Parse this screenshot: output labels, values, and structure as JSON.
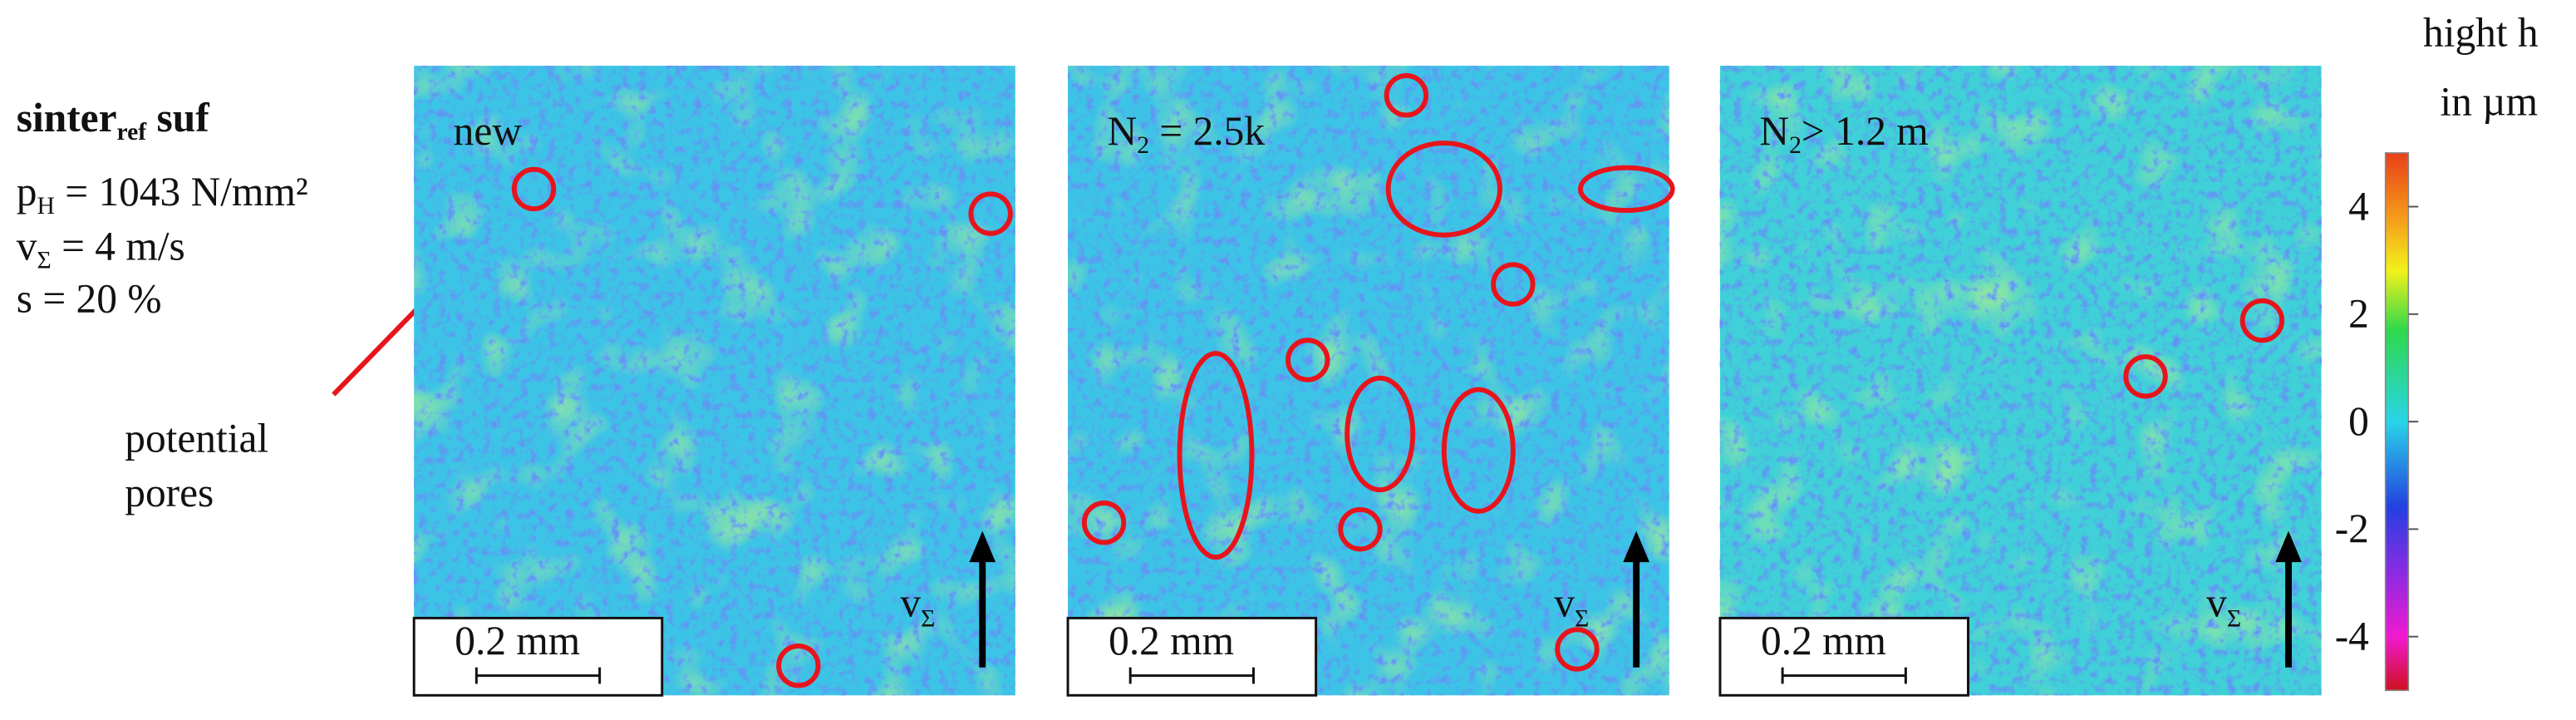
{
  "parameters": {
    "specimen": {
      "main": "sinter",
      "sub": "ref",
      "rest": " suf"
    },
    "pressure": {
      "main": "p",
      "sub": "H",
      "rest": " = 1043 N/mm²"
    },
    "velocity": {
      "main": "v",
      "sub": "Σ",
      "rest": " = 4 m/s"
    },
    "slip": "s = 20 %"
  },
  "annotation": [
    "potential",
    "pores"
  ],
  "panels": [
    {
      "label": {
        "main": "new",
        "sub": "",
        "rest": ""
      },
      "scale_bar": "0.2 mm",
      "direction": {
        "main": "v",
        "sub": "Σ"
      }
    },
    {
      "label": {
        "main": "N",
        "sub": "2",
        "rest": " = 2.5k"
      },
      "scale_bar": "0.2 mm",
      "direction": {
        "main": "v",
        "sub": "Σ"
      }
    },
    {
      "label": {
        "main": "N",
        "sub": "2",
        "rest": "> 1.2 m"
      },
      "scale_bar": "0.2 mm",
      "direction": {
        "main": "v",
        "sub": "Σ"
      }
    }
  ],
  "colorbar": {
    "title": [
      "hight h",
      "in µm"
    ],
    "lim": [
      -5,
      5
    ],
    "ticks": [
      4,
      2,
      0,
      -2,
      -4
    ]
  }
}
